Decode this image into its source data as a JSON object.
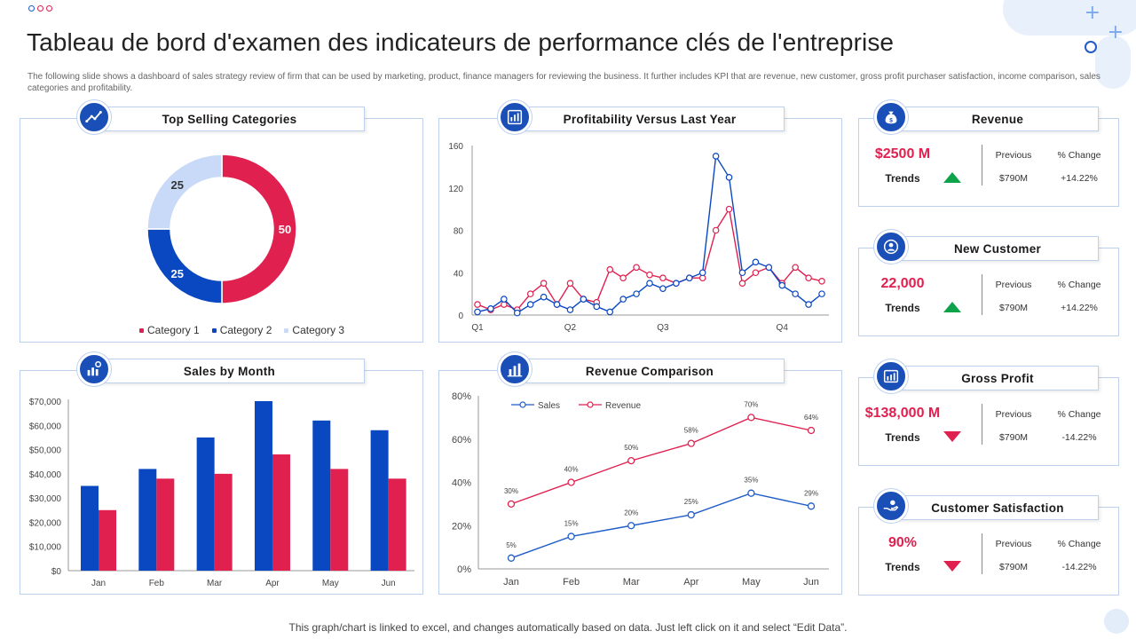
{
  "page": {
    "title": "Tableau de bord d'examen des indicateurs de performance clés de l'entreprise",
    "description": "The following slide shows a dashboard of sales strategy review of firm that can be used by marketing, product, finance managers for reviewing the business. It further includes KPI that are revenue, new customer, gross profit purchaser satisfaction, income comparison, sales categories and profitability.",
    "footer": "This graph/chart is linked to excel, and changes automatically based on data. Just left click on it and select “Edit Data”."
  },
  "colors": {
    "red": "#e0204f",
    "blue": "#0a48c2",
    "light_blue": "#c8daf7",
    "green": "#0ea34b",
    "navy": "#1a4fb8"
  },
  "panels": {
    "top_selling": {
      "title": "Top Selling Categories",
      "icon": "trend-chart-icon"
    },
    "profitability": {
      "title": "Profitability  Versus Last Year",
      "icon": "finance-report-icon"
    },
    "sales_by_month": {
      "title": "Sales by Month",
      "icon": "bar-chart-gear-icon"
    },
    "revenue_comparison": {
      "title": "Revenue Comparison",
      "icon": "bar-chart-icon"
    }
  },
  "chart_data": [
    {
      "id": "top_selling",
      "type": "pie",
      "title": "Top Selling Categories",
      "categories": [
        "Category 1",
        "Category 2",
        "Category 3"
      ],
      "values": [
        50,
        25,
        25
      ],
      "colors": [
        "#e0204f",
        "#0a48c2",
        "#c8daf7"
      ],
      "legend": "bottom"
    },
    {
      "id": "profitability",
      "type": "line",
      "title": "Profitability  Versus Last Year",
      "x_tick_labels": [
        "Q1",
        "Q2",
        "Q3",
        "Q4"
      ],
      "ylim": [
        0,
        160
      ],
      "yticks": [
        0,
        40,
        80,
        120,
        160
      ],
      "series": [
        {
          "color": "#e0204f",
          "values": [
            10,
            5,
            10,
            5,
            20,
            30,
            10,
            30,
            15,
            12,
            43,
            35,
            45,
            38,
            35,
            30,
            35,
            35,
            80,
            100,
            30,
            40,
            45,
            30,
            45,
            35,
            32
          ]
        },
        {
          "color": "#0a48c2",
          "values": [
            3,
            6,
            15,
            2,
            10,
            17,
            10,
            5,
            15,
            8,
            3,
            15,
            20,
            30,
            25,
            30,
            35,
            40,
            150,
            130,
            40,
            50,
            45,
            28,
            20,
            10,
            20
          ]
        }
      ]
    },
    {
      "id": "sales_by_month",
      "type": "bar",
      "title": "Sales by Month",
      "categories": [
        "Jan",
        "Feb",
        "Mar",
        "Apr",
        "May",
        "Jun"
      ],
      "ylim": [
        0,
        70000
      ],
      "ytick_labels": [
        "$0",
        "$10,000",
        "$20,000",
        "$30,000",
        "$40,000",
        "$50,000",
        "$60,000",
        "$70,000"
      ],
      "series": [
        {
          "color": "#0a48c2",
          "values": [
            35000,
            42000,
            55000,
            70000,
            62000,
            58000
          ]
        },
        {
          "color": "#e0204f",
          "values": [
            25000,
            38000,
            40000,
            48000,
            42000,
            38000
          ]
        }
      ]
    },
    {
      "id": "revenue_comparison",
      "type": "line",
      "title": "Revenue Comparison",
      "categories": [
        "Jan",
        "Feb",
        "Mar",
        "Apr",
        "May",
        "Jun"
      ],
      "ylim": [
        0,
        80
      ],
      "ytick_labels": [
        "0%",
        "20%",
        "40%",
        "60%",
        "80%"
      ],
      "legend": "top-left",
      "series": [
        {
          "name": "Sales",
          "color": "#1f5cc8",
          "values": [
            5,
            15,
            20,
            25,
            35,
            29
          ],
          "labels": [
            "5%",
            "15%",
            "20%",
            "25%",
            "35%",
            "29%"
          ]
        },
        {
          "name": "Revenue",
          "color": "#e0204f",
          "values": [
            30,
            40,
            50,
            58,
            70,
            64
          ],
          "labels": [
            "30%",
            "40%",
            "50%",
            "58%",
            "70%",
            "64%"
          ]
        }
      ]
    }
  ],
  "kpis": [
    {
      "title": "Revenue",
      "icon": "money-bag-icon",
      "value": "$2500 M",
      "trends_label": "Trends",
      "direction": "up",
      "previous_label": "Previous",
      "change_label": "% Change",
      "previous": "$790M",
      "change": "+14.22%"
    },
    {
      "title": "New Customer",
      "icon": "customer-icon",
      "value": "22,000",
      "trends_label": "Trends",
      "direction": "up",
      "previous_label": "Previous",
      "change_label": "% Change",
      "previous": "$790M",
      "change": "+14.22%"
    },
    {
      "title": "Gross Profit",
      "icon": "profit-chart-icon",
      "value": "$138,000 M",
      "trends_label": "Trends",
      "direction": "down",
      "previous_label": "Previous",
      "change_label": "% Change",
      "previous": "$790M",
      "change": "-14.22%"
    },
    {
      "title": "Customer Satisfaction",
      "icon": "satisfaction-hand-icon",
      "value": "90%",
      "trends_label": "Trends",
      "direction": "down",
      "previous_label": "Previous",
      "change_label": "% Change",
      "previous": "$790M",
      "change": "-14.22%"
    }
  ]
}
